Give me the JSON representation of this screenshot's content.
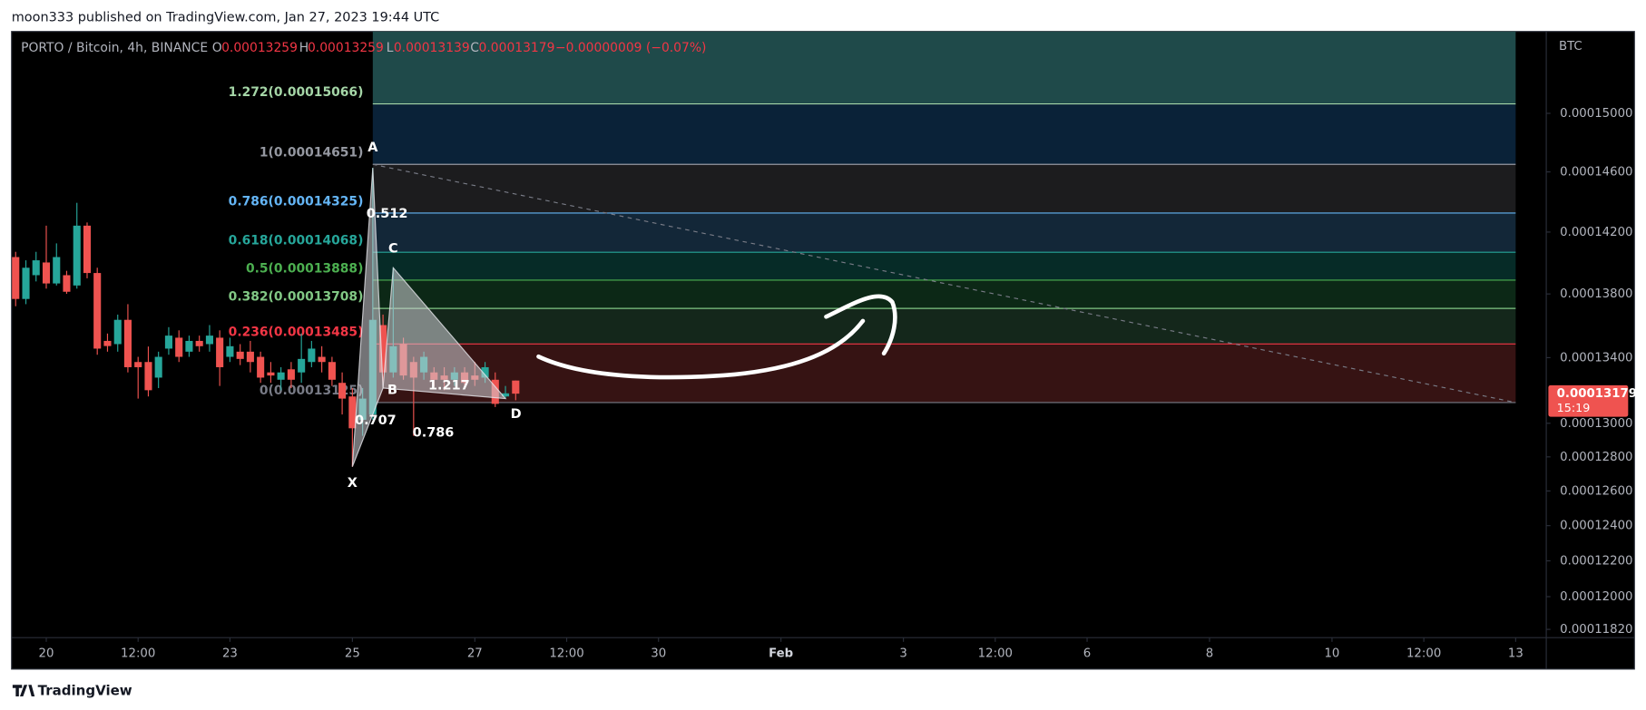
{
  "page": {
    "published": "moon333 published on TradingView.com, Jan 27, 2023 19:44 UTC",
    "brand": "TradingView"
  },
  "chart_data": {
    "type": "candlestick",
    "title": "PORTO / Bitcoin, 4h, BINANCE",
    "ohlc_labels": [
      "O",
      "H",
      "L",
      "C"
    ],
    "change": "−0.00000009 (−0.07%)",
    "currency": "BTC",
    "countdown": "15:19",
    "up_color": "#26a69a",
    "down_color": "#ef5350",
    "log_scale": true,
    "grid": false,
    "xlim": [
      19.45,
      44.5
    ],
    "xticks": [
      20,
      {
        "value": 21.5,
        "label": "12:00"
      },
      23,
      25,
      27,
      {
        "value": 28.5,
        "label": "12:00"
      },
      30,
      {
        "value": 32,
        "label": "Feb"
      },
      {
        "value": 34,
        "label": "3"
      },
      {
        "value": 35.5,
        "label": "12:00"
      },
      {
        "value": 37,
        "label": "6"
      },
      {
        "value": 39,
        "label": "8"
      },
      {
        "value": 41,
        "label": "10"
      },
      {
        "value": 42.5,
        "label": "12:00"
      },
      {
        "value": 44,
        "label": "13"
      }
    ],
    "ylim": [
      0.00011775,
      0.00015578
    ],
    "yticks": [
      {
        "value": 0.00015,
        "label": "0.00015000"
      },
      {
        "value": 0.000146,
        "label": "0.00014600"
      },
      {
        "value": 0.000142,
        "label": "0.00014200"
      },
      {
        "value": 0.000138,
        "label": "0.00013800"
      },
      {
        "value": 0.000134,
        "label": "0.00013400"
      },
      {
        "value": 0.00013,
        "label": "0.00013000"
      },
      {
        "value": 0.000128,
        "label": "0.00012800"
      },
      {
        "value": 0.000126,
        "label": "0.00012600"
      },
      {
        "value": 0.000124,
        "label": "0.00012400"
      },
      {
        "value": 0.000122,
        "label": "0.00012200"
      },
      {
        "value": 0.00012,
        "label": "0.00012000"
      },
      {
        "value": 0.0001182,
        "label": "0.00011820"
      }
    ],
    "x": [
      19.5,
      19.667,
      19.833,
      20,
      20.167,
      20.333,
      20.5,
      20.667,
      20.833,
      21,
      21.167,
      21.333,
      21.5,
      21.667,
      21.833,
      22,
      22.167,
      22.333,
      22.5,
      22.667,
      22.833,
      23,
      23.167,
      23.333,
      23.5,
      23.667,
      23.833,
      24,
      24.167,
      24.333,
      24.5,
      24.667,
      24.833,
      25,
      25.167,
      25.333,
      25.5,
      25.667,
      25.833,
      26,
      26.167,
      26.333,
      26.5,
      26.667,
      26.833,
      27,
      27.167,
      27.333,
      27.5,
      27.667
    ],
    "open": [
      0.00014037,
      0.00013768,
      0.0001392,
      0.00014002,
      0.00013867,
      0.0001392,
      0.00013854,
      0.00014242,
      0.00013934,
      0.00013504,
      0.00013484,
      0.00013636,
      0.00013373,
      0.00013373,
      0.00013277,
      0.00013456,
      0.00013524,
      0.00013437,
      0.00013504,
      0.00013484,
      0.00013524,
      0.00013405,
      0.00013437,
      0.00013437,
      0.00013405,
      0.00013309,
      0.00013264,
      0.00013328,
      0.00013309,
      0.00013373,
      0.00013405,
      0.00013373,
      0.00013245,
      0.00013162,
      0.00013021,
      0.00013053,
      0.00013603,
      0.00013309,
      0.00013484,
      0.00013373,
      0.00013309,
      0.00013309,
      0.0001329,
      0.00013264,
      0.00013309,
      0.0001329,
      0.00013277,
      0.00013264,
      0.00013162,
      0.00013259
    ],
    "high": [
      0.00014071,
      0.00014016,
      0.00014071,
      0.00014242,
      0.00014126,
      0.00013948,
      0.00014393,
      0.00014263,
      0.00013968,
      0.0001355,
      0.00013669,
      0.00013735,
      0.00013405,
      0.00013469,
      0.00013437,
      0.0001359,
      0.0001357,
      0.00013537,
      0.00013537,
      0.00013603,
      0.0001357,
      0.00013524,
      0.00013484,
      0.00013504,
      0.00013437,
      0.00013373,
      0.00013341,
      0.00013373,
      0.0001355,
      0.00013504,
      0.00013471,
      0.00013405,
      0.00013309,
      0.00013213,
      0.00013213,
      0.00014627,
      0.00013669,
      0.00013968,
      0.00013524,
      0.00013405,
      0.00013437,
      0.00013341,
      0.00013341,
      0.00013341,
      0.00013341,
      0.00013373,
      0.00013373,
      0.00013309,
      0.00013226,
      0.00013259
    ],
    "low": [
      0.00013722,
      0.00013735,
      0.0001388,
      0.00013834,
      0.00013854,
      0.00013801,
      0.00013834,
      0.000139,
      0.00013418,
      0.00013437,
      0.00013437,
      0.00013309,
      0.00013149,
      0.00013162,
      0.00013213,
      0.00013418,
      0.00013373,
      0.00013405,
      0.00013437,
      0.00013437,
      0.00013226,
      0.00013373,
      0.00013354,
      0.00013309,
      0.00013245,
      0.00013245,
      0.000132,
      0.00013213,
      0.00013245,
      0.00013341,
      0.00013309,
      0.00013226,
      0.00013053,
      0.00012742,
      0.00012925,
      0.00013021,
      0.00013213,
      0.00013277,
      0.00013264,
      0.00012925,
      0.00013264,
      0.00013226,
      0.000132,
      0.00013226,
      0.00013213,
      0.00013226,
      0.00013245,
      0.00013098,
      0.00013149,
      0.00013139
    ],
    "close": [
      0.00013768,
      0.00013968,
      0.00014016,
      0.00013867,
      0.00014037,
      0.00013814,
      0.00014242,
      0.00013934,
      0.00013456,
      0.00013472,
      0.00013636,
      0.00013341,
      0.00013341,
      0.000132,
      0.00013405,
      0.00013537,
      0.00013405,
      0.00013504,
      0.00013471,
      0.00013537,
      0.00013341,
      0.00013471,
      0.00013392,
      0.00013373,
      0.00013277,
      0.0001329,
      0.00013309,
      0.00013264,
      0.00013392,
      0.00013456,
      0.00013373,
      0.00013264,
      0.00013149,
      0.0001297,
      0.00013149,
      0.00013636,
      0.00013309,
      0.00013471,
      0.0001329,
      0.00013277,
      0.00013405,
      0.00013264,
      0.00013264,
      0.00013309,
      0.00013245,
      0.00013264,
      0.00013341,
      0.00013117,
      0.00013181,
      0.00013179
    ],
    "fib": {
      "x": [
        25.333,
        44
      ],
      "levels": [
        {
          "label": "1.272(0.00015066)",
          "price": 0.00015066,
          "color": "#a5d6a7",
          "band_color": "#0a2238"
        },
        {
          "label": "1(0.00014651)",
          "price": 0.00014651,
          "color": "#9598a1",
          "band_color": "#1c1c1e"
        },
        {
          "label": "0.786(0.00014325)",
          "price": 0.00014325,
          "color": "#64b5f6",
          "band_color": "#132738"
        },
        {
          "label": "0.618(0.00014068)",
          "price": 0.00014068,
          "color": "#26a69a",
          "band_color": "#062b27"
        },
        {
          "label": "0.5(0.00013888)",
          "price": 0.00013888,
          "color": "#4caf50",
          "band_color": "#0c2816"
        },
        {
          "label": "0.382(0.00013708)",
          "price": 0.00013708,
          "color": "#81c784",
          "band_color": "#14271b"
        },
        {
          "label": "0.236(0.00013485)",
          "price": 0.00013485,
          "color": "#f23645",
          "band_color": "#361313"
        },
        {
          "label": "0(0.00013125)",
          "price": 0.00013125,
          "color": "#787b86"
        }
      ]
    },
    "pattern": {
      "points": [
        {
          "label": "X",
          "x": 25,
          "price": 0.00012742
        },
        {
          "label": "A",
          "x": 25.333,
          "price": 0.00014627
        },
        {
          "label": "B",
          "x": 25.5,
          "price": 0.00013213
        },
        {
          "label": "C",
          "x": 25.667,
          "price": 0.00013968
        },
        {
          "label": "D",
          "x": 27.5,
          "price": 0.00013149
        }
      ],
      "ratios": [
        "0.512",
        "0.707",
        "0.786",
        "1.217"
      ]
    }
  }
}
